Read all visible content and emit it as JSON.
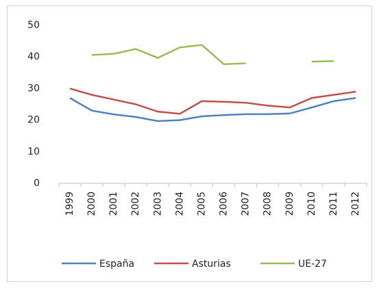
{
  "chart_data": {
    "type": "line",
    "categories": [
      "1999",
      "2000",
      "2001",
      "2002",
      "2003",
      "2004",
      "2005",
      "2006",
      "2007",
      "2008",
      "2009",
      "2010",
      "2011",
      "2012"
    ],
    "series": [
      {
        "name": "España",
        "color": "#4f81bd",
        "values": [
          27,
          23,
          21.8,
          21,
          19.7,
          20,
          21.2,
          21.6,
          21.9,
          21.9,
          22.1,
          24,
          26,
          27
        ]
      },
      {
        "name": "Asturias",
        "color": "#c0504d",
        "values": [
          30,
          28,
          26.5,
          25,
          22.7,
          22,
          26,
          25.8,
          25.5,
          24.6,
          24,
          27,
          28,
          29
        ]
      },
      {
        "name": "UE-27",
        "color": "#9bbb59",
        "values": [
          null,
          40.6,
          41,
          42.5,
          39.7,
          43,
          43.8,
          37.7,
          38,
          null,
          null,
          38.5,
          38.7,
          null
        ]
      }
    ],
    "ylim": [
      0,
      50
    ],
    "yticks": [
      0,
      10,
      20,
      30,
      40,
      50
    ],
    "legend": "bottom"
  }
}
